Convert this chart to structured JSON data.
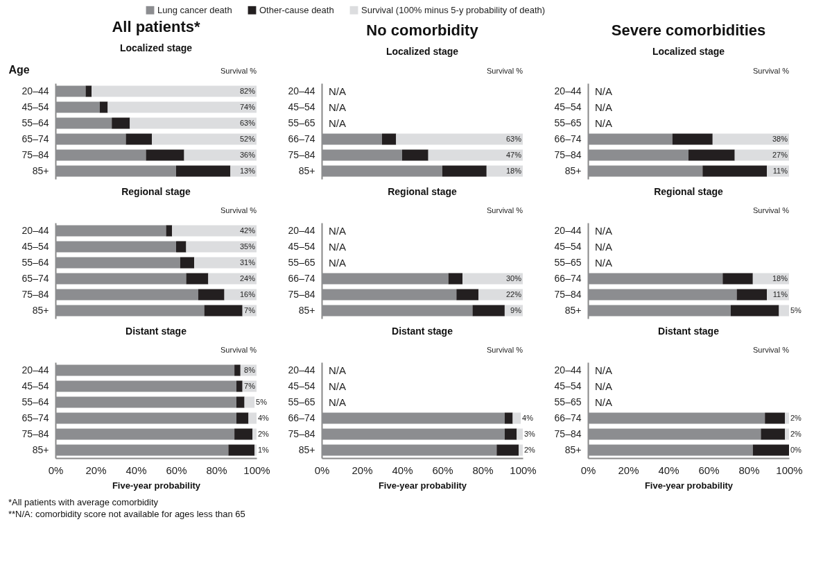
{
  "chart_data": [
    {
      "type": "bar",
      "orientation": "horizontal",
      "stacked": true,
      "title": "All patients*",
      "subtitle": "Localized stage",
      "ylabel": "Age",
      "y2label": "Survival %",
      "legend": "top",
      "tick_labels": "y",
      "xlim": [
        0,
        100
      ],
      "categories": [
        "20–44",
        "45–54",
        "55–64",
        "65–74",
        "75–84",
        "85+"
      ],
      "series": [
        {
          "name": "Lung cancer death",
          "color": "#8c8d90",
          "values": [
            15,
            22,
            28,
            35,
            45,
            60
          ]
        },
        {
          "name": "Other-cause death",
          "color": "#231f20",
          "values": [
            3,
            4,
            9,
            13,
            19,
            27
          ]
        },
        {
          "name": "Survival (100% minus 5-y probability of death)",
          "color": "#dcdddf",
          "values": [
            82,
            74,
            63,
            52,
            36,
            13
          ],
          "value_labels": [
            "82%",
            "74%",
            "63%",
            "52%",
            "36%",
            "13%"
          ]
        }
      ]
    },
    {
      "type": "bar",
      "orientation": "horizontal",
      "stacked": true,
      "title": "No comorbidity",
      "subtitle": "Localized stage",
      "y2label": "Survival %",
      "tick_labels": "y",
      "xlim": [
        0,
        100
      ],
      "categories": [
        "20–44",
        "45–54",
        "55–65",
        "66–74",
        "75–84",
        "85+"
      ],
      "series": [
        {
          "color": "#8c8d90",
          "values": [
            null,
            null,
            null,
            30,
            40,
            60
          ],
          "value_labels": [
            "N/A",
            "N/A",
            "N/A",
            null,
            null,
            null
          ]
        },
        {
          "color": "#231f20",
          "values": [
            null,
            null,
            null,
            7,
            13,
            22
          ]
        },
        {
          "color": "#dcdddf",
          "values": [
            null,
            null,
            null,
            63,
            47,
            18
          ],
          "value_labels": [
            null,
            null,
            null,
            "63%",
            "47%",
            "18%"
          ]
        }
      ]
    },
    {
      "type": "bar",
      "orientation": "horizontal",
      "stacked": true,
      "title": "Severe comorbidities",
      "subtitle": "Localized stage",
      "y2label": "Survival %",
      "tick_labels": "y",
      "xlim": [
        0,
        100
      ],
      "categories": [
        "20–44",
        "45–54",
        "55–65",
        "66–74",
        "75–84",
        "85+"
      ],
      "series": [
        {
          "color": "#8c8d90",
          "values": [
            null,
            null,
            null,
            42,
            50,
            57
          ],
          "value_labels": [
            "N/A",
            "N/A",
            "N/A",
            null,
            null,
            null
          ]
        },
        {
          "color": "#231f20",
          "values": [
            null,
            null,
            null,
            20,
            23,
            32
          ]
        },
        {
          "color": "#dcdddf",
          "values": [
            null,
            null,
            null,
            38,
            27,
            11
          ],
          "value_labels": [
            null,
            null,
            null,
            "38%",
            "27%",
            "11%"
          ]
        }
      ]
    },
    {
      "type": "bar",
      "orientation": "horizontal",
      "stacked": true,
      "title": "Regional stage",
      "y2label": "Survival %",
      "tick_labels": "y",
      "xlim": [
        0,
        100
      ],
      "categories": [
        "20–44",
        "45–54",
        "55–64",
        "65–74",
        "75–84",
        "85+"
      ],
      "series": [
        {
          "color": "#8c8d90",
          "values": [
            55,
            60,
            62,
            65,
            71,
            74
          ]
        },
        {
          "color": "#231f20",
          "values": [
            3,
            5,
            7,
            11,
            13,
            19
          ]
        },
        {
          "color": "#dcdddf",
          "values": [
            42,
            35,
            31,
            24,
            16,
            7
          ],
          "value_labels": [
            "42%",
            "35%",
            "31%",
            "24%",
            "16%",
            "7%"
          ]
        }
      ]
    },
    {
      "type": "bar",
      "orientation": "horizontal",
      "stacked": true,
      "title": "Regional stage",
      "y2label": "Survival %",
      "tick_labels": "y",
      "xlim": [
        0,
        100
      ],
      "categories": [
        "20–44",
        "45–54",
        "55–65",
        "66–74",
        "75–84",
        "85+"
      ],
      "series": [
        {
          "color": "#8c8d90",
          "values": [
            null,
            null,
            null,
            63,
            67,
            75
          ],
          "value_labels": [
            "N/A",
            "N/A",
            "N/A",
            null,
            null,
            null
          ]
        },
        {
          "color": "#231f20",
          "values": [
            null,
            null,
            null,
            7,
            11,
            16
          ]
        },
        {
          "color": "#dcdddf",
          "values": [
            null,
            null,
            null,
            30,
            22,
            9
          ],
          "value_labels": [
            null,
            null,
            null,
            "30%",
            "22%",
            "9%"
          ]
        }
      ]
    },
    {
      "type": "bar",
      "orientation": "horizontal",
      "stacked": true,
      "title": "Regional stage",
      "y2label": "Survival %",
      "tick_labels": "y",
      "xlim": [
        0,
        100
      ],
      "categories": [
        "20–44",
        "45–54",
        "55–65",
        "66–74",
        "75–84",
        "85+"
      ],
      "series": [
        {
          "color": "#8c8d90",
          "values": [
            null,
            null,
            null,
            67,
            74,
            71
          ],
          "value_labels": [
            "N/A",
            "N/A",
            "N/A",
            null,
            null,
            null
          ]
        },
        {
          "color": "#231f20",
          "values": [
            null,
            null,
            null,
            15,
            15,
            24
          ]
        },
        {
          "color": "#dcdddf",
          "values": [
            null,
            null,
            null,
            18,
            11,
            5
          ],
          "value_labels": [
            null,
            null,
            null,
            "18%",
            "11%",
            "5%"
          ]
        }
      ]
    },
    {
      "type": "bar",
      "orientation": "horizontal",
      "stacked": true,
      "title": "Distant stage",
      "y2label": "Survival %",
      "xlabel": "Five-year probability",
      "xlim": [
        0,
        100
      ],
      "xticks": [
        {
          "value": 0,
          "label": "0%"
        },
        {
          "value": 20,
          "label": "20%"
        },
        {
          "value": 40,
          "label": "40%"
        },
        {
          "value": 60,
          "label": "60%"
        },
        {
          "value": 80,
          "label": "80%"
        },
        {
          "value": 100,
          "label": "100%"
        }
      ],
      "categories": [
        "20–44",
        "45–54",
        "55–64",
        "65–74",
        "75–84",
        "85+"
      ],
      "annotations": [
        "*All patients with average comorbidity",
        "**N/A: comorbidity score not available for ages less than 65"
      ],
      "series": [
        {
          "color": "#8c8d90",
          "values": [
            89,
            90,
            90,
            90,
            89,
            86
          ]
        },
        {
          "color": "#231f20",
          "values": [
            3,
            3,
            4,
            6,
            9,
            13
          ]
        },
        {
          "color": "#dcdddf",
          "values": [
            8,
            7,
            5,
            4,
            2,
            1
          ],
          "value_labels": [
            "8%",
            "7%",
            "5%",
            "4%",
            "2%",
            "1%"
          ]
        }
      ]
    },
    {
      "type": "bar",
      "orientation": "horizontal",
      "stacked": true,
      "title": "Distant stage",
      "y2label": "Survival %",
      "xlabel": "Five-year probability",
      "xlim": [
        0,
        100
      ],
      "xticks": [
        {
          "value": 0,
          "label": "0%"
        },
        {
          "value": 20,
          "label": "20%"
        },
        {
          "value": 40,
          "label": "40%"
        },
        {
          "value": 60,
          "label": "60%"
        },
        {
          "value": 80,
          "label": "80%"
        },
        {
          "value": 100,
          "label": "100%"
        }
      ],
      "categories": [
        "20–44",
        "45–54",
        "55–65",
        "66–74",
        "75–84",
        "85+"
      ],
      "series": [
        {
          "color": "#8c8d90",
          "values": [
            null,
            null,
            null,
            91,
            91,
            87
          ],
          "value_labels": [
            "N/A",
            "N/A",
            "N/A",
            null,
            null,
            null
          ]
        },
        {
          "color": "#231f20",
          "values": [
            null,
            null,
            null,
            4,
            6,
            11
          ]
        },
        {
          "color": "#dcdddf",
          "values": [
            null,
            null,
            null,
            4,
            3,
            2
          ],
          "value_labels": [
            null,
            null,
            null,
            "4%",
            "3%",
            "2%"
          ]
        }
      ]
    },
    {
      "type": "bar",
      "orientation": "horizontal",
      "stacked": true,
      "title": "Distant stage",
      "y2label": "Survival %",
      "xlabel": "Five-year probability",
      "xlim": [
        0,
        100
      ],
      "xticks": [
        {
          "value": 0,
          "label": "0%"
        },
        {
          "value": 20,
          "label": "20%"
        },
        {
          "value": 40,
          "label": "40%"
        },
        {
          "value": 60,
          "label": "60%"
        },
        {
          "value": 80,
          "label": "80%"
        },
        {
          "value": 100,
          "label": "100%"
        }
      ],
      "categories": [
        "20–44",
        "45–54",
        "55–65",
        "66–74",
        "75–84",
        "85+"
      ],
      "series": [
        {
          "color": "#8c8d90",
          "values": [
            null,
            null,
            null,
            88,
            86,
            82
          ],
          "value_labels": [
            "N/A",
            "N/A",
            "N/A",
            null,
            null,
            null
          ]
        },
        {
          "color": "#231f20",
          "values": [
            null,
            null,
            null,
            10,
            12,
            18
          ]
        },
        {
          "color": "#dcdddf",
          "values": [
            null,
            null,
            null,
            2,
            2,
            0
          ],
          "value_labels": [
            null,
            null,
            null,
            "2%",
            "2%",
            "0%"
          ]
        }
      ]
    }
  ]
}
